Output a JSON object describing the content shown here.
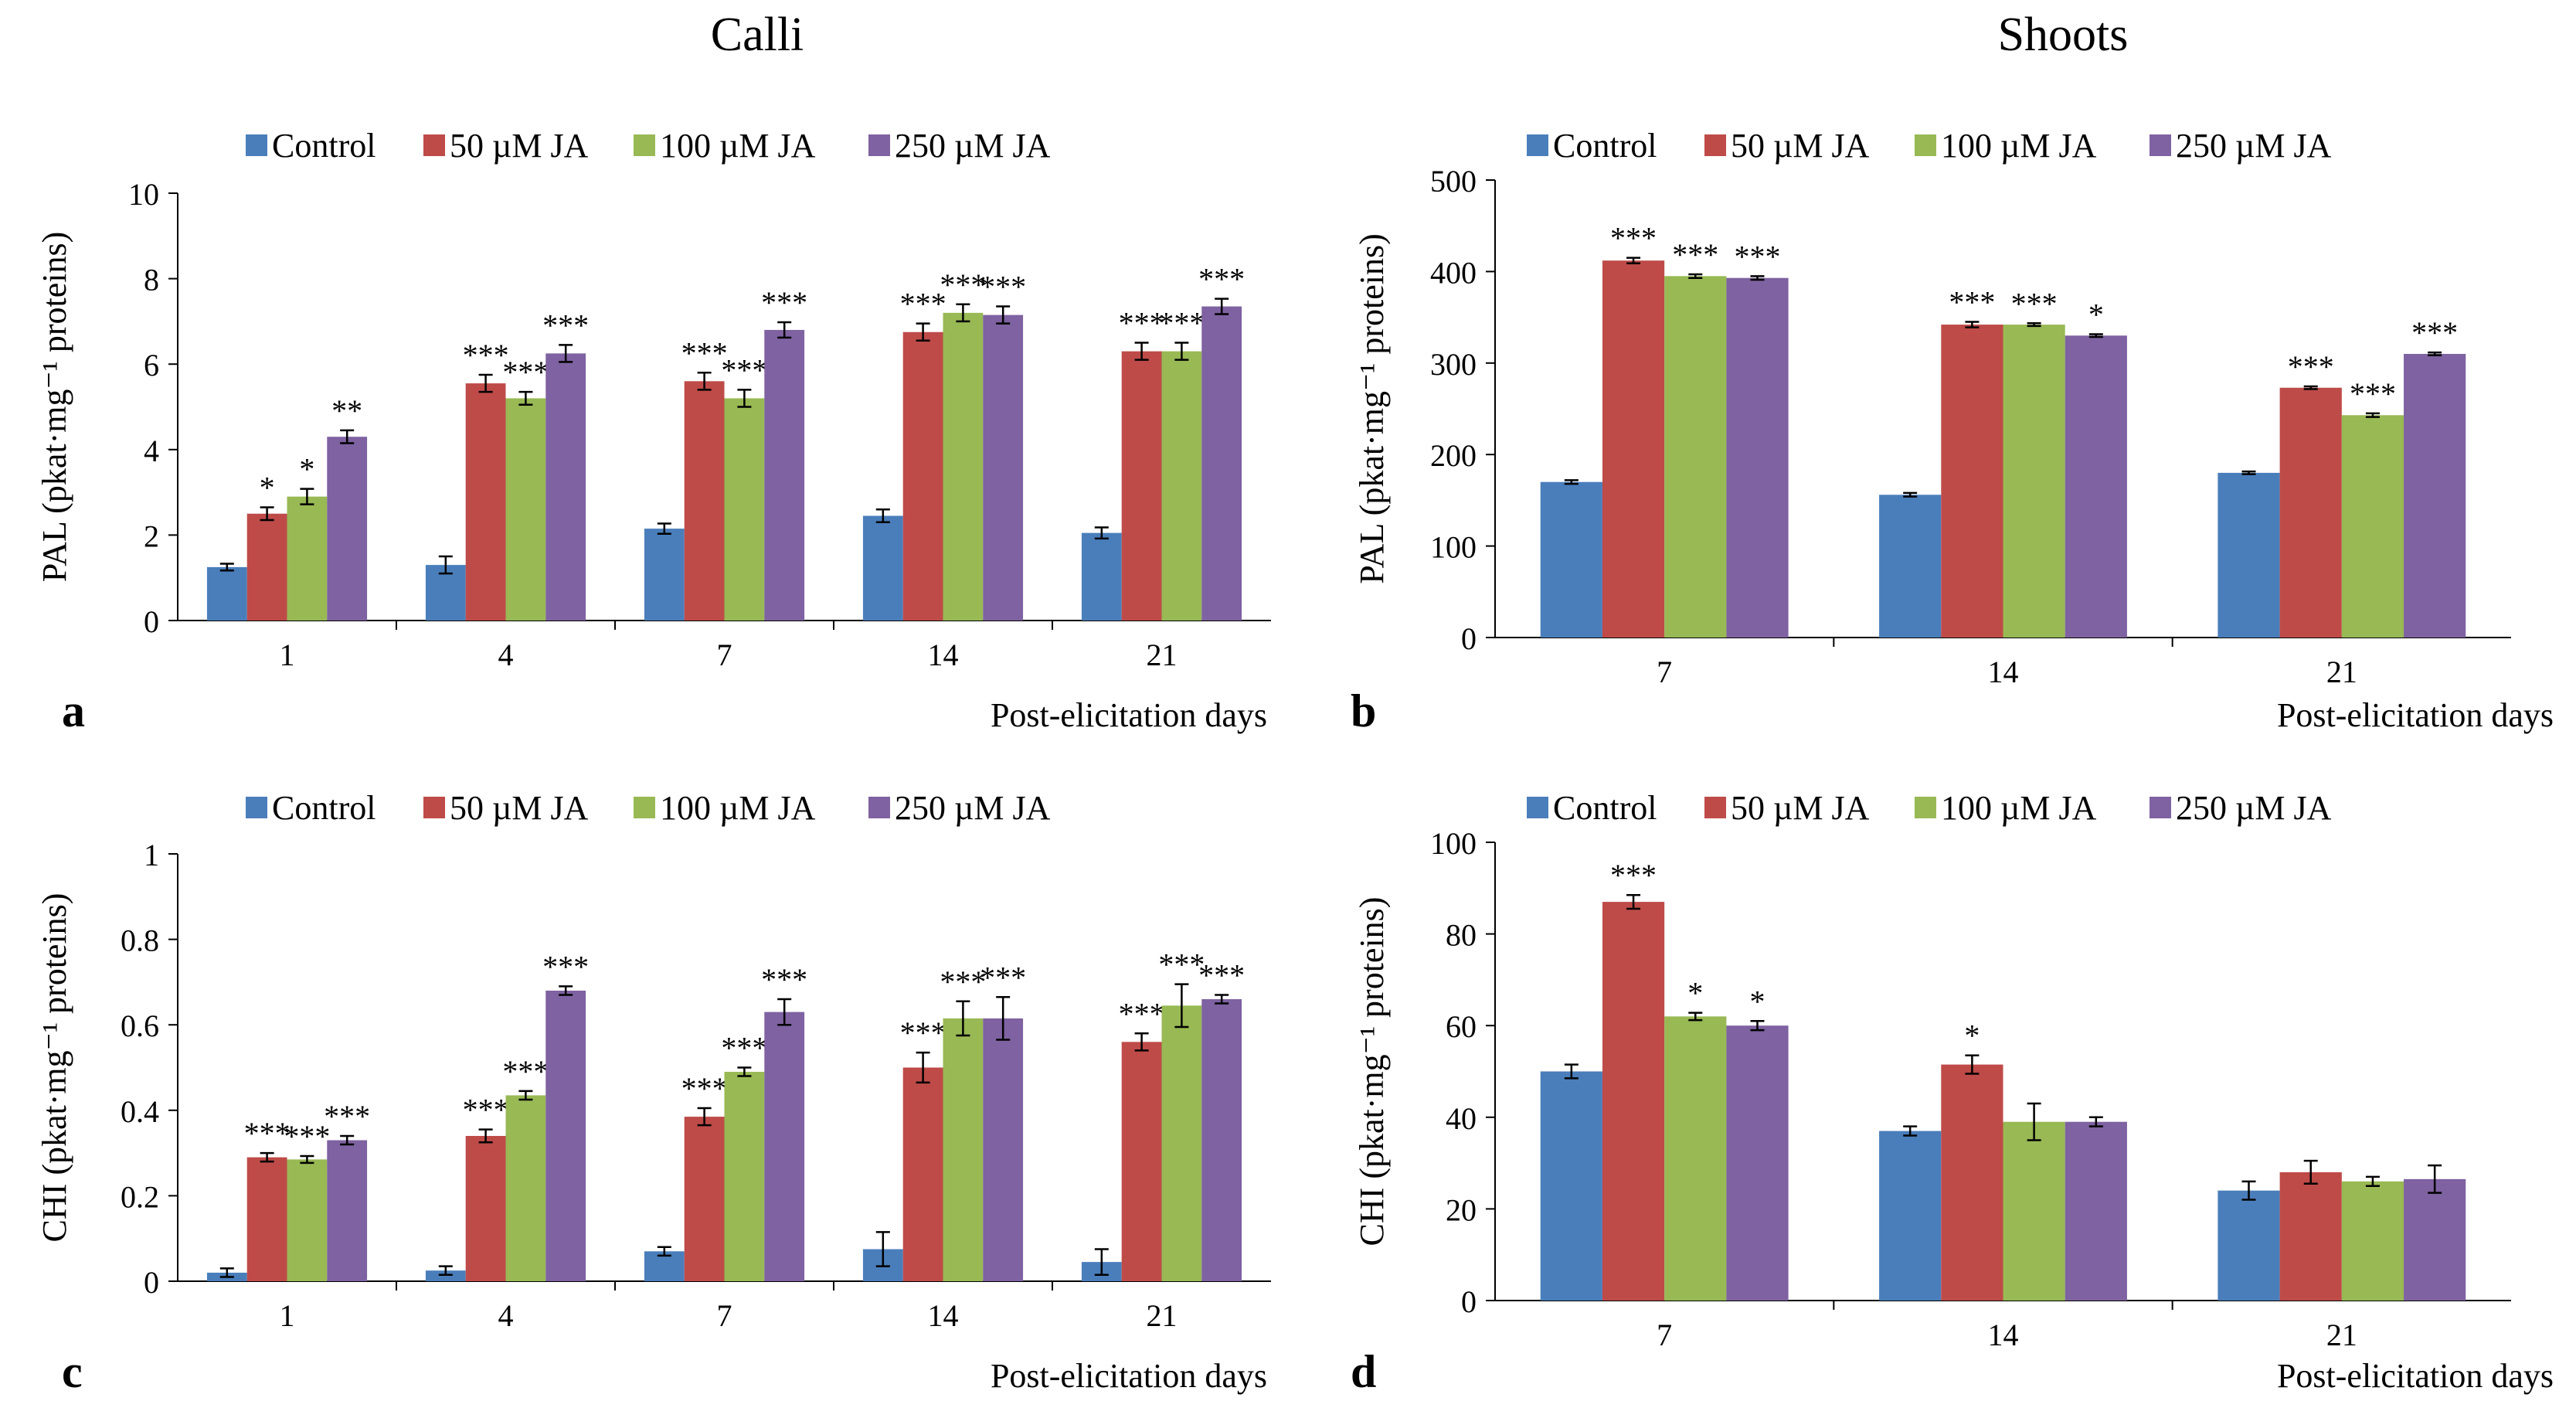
{
  "titles": {
    "left": "Calli",
    "right": "Shoots"
  },
  "colors": {
    "Control": "#4a7ebb",
    "50 µM JA": "#be4b48",
    "100 µM JA": "#98b954",
    "250 µM JA": "#7e62a1"
  },
  "chart_data": [
    {
      "id": "a",
      "panel_label": "a",
      "type": "bar",
      "ylabel": "PAL (pkat·mg⁻¹ proteins)",
      "xlabel": "Post-elicitation days",
      "ylim": [
        0,
        10
      ],
      "yticks": [
        "0",
        "2",
        "4",
        "6",
        "8",
        "10"
      ],
      "categories": [
        "1",
        "4",
        "7",
        "14",
        "21"
      ],
      "series": [
        {
          "name": "Control",
          "values": [
            1.25,
            1.3,
            2.15,
            2.45,
            2.05
          ],
          "errors": [
            0.08,
            0.2,
            0.12,
            0.15,
            0.13
          ],
          "sig": [
            "",
            "",
            "",
            "",
            ""
          ]
        },
        {
          "name": "50 µM JA",
          "values": [
            2.5,
            5.55,
            5.6,
            6.75,
            6.3
          ],
          "errors": [
            0.15,
            0.2,
            0.2,
            0.2,
            0.2
          ],
          "sig": [
            "*",
            "***",
            "***",
            "***",
            "***"
          ]
        },
        {
          "name": "100 µM JA",
          "values": [
            2.9,
            5.2,
            5.2,
            7.2,
            6.3
          ],
          "errors": [
            0.18,
            0.15,
            0.2,
            0.2,
            0.2
          ],
          "sig": [
            "*",
            "***",
            "***",
            "***",
            "***"
          ]
        },
        {
          "name": "250 µM JA",
          "values": [
            4.3,
            6.25,
            6.8,
            7.15,
            7.35
          ],
          "errors": [
            0.15,
            0.2,
            0.18,
            0.2,
            0.18
          ],
          "sig": [
            "**",
            "***",
            "***",
            "***",
            "***"
          ]
        }
      ]
    },
    {
      "id": "b",
      "panel_label": "b",
      "type": "bar",
      "ylabel": "PAL (pkat·mg⁻¹ proteins)",
      "xlabel": "Post-elicitation days",
      "ylim": [
        0,
        500
      ],
      "yticks": [
        "0",
        "100",
        "200",
        "300",
        "400",
        "500"
      ],
      "categories": [
        "7",
        "14",
        "21"
      ],
      "series": [
        {
          "name": "Control",
          "values": [
            170,
            156,
            180
          ],
          "errors": [
            2,
            2,
            1.5
          ],
          "sig": [
            "",
            "",
            ""
          ]
        },
        {
          "name": "50 µM JA",
          "values": [
            412,
            342,
            273
          ],
          "errors": [
            3,
            3,
            1.5
          ],
          "sig": [
            "***",
            "***",
            "***"
          ]
        },
        {
          "name": "100 µM JA",
          "values": [
            395,
            342,
            243
          ],
          "errors": [
            2,
            1.5,
            2
          ],
          "sig": [
            "***",
            "***",
            "***"
          ]
        },
        {
          "name": "250 µM JA",
          "values": [
            393,
            330,
            310
          ],
          "errors": [
            2,
            1.5,
            1.5
          ],
          "sig": [
            "***",
            "*",
            "***"
          ]
        }
      ]
    },
    {
      "id": "c",
      "panel_label": "c",
      "type": "bar",
      "ylabel": "CHI (pkat·mg⁻¹ proteins)",
      "xlabel": "Post-elicitation days",
      "ylim": [
        0,
        1
      ],
      "yticks": [
        "0",
        "0.2",
        "0.4",
        "0.6",
        "0.8",
        "1"
      ],
      "categories": [
        "1",
        "4",
        "7",
        "14",
        "21"
      ],
      "series": [
        {
          "name": "Control",
          "values": [
            0.02,
            0.025,
            0.07,
            0.075,
            0.045
          ],
          "errors": [
            0.01,
            0.01,
            0.01,
            0.04,
            0.03
          ],
          "sig": [
            "",
            "",
            "",
            "",
            ""
          ]
        },
        {
          "name": "50 µM JA",
          "values": [
            0.29,
            0.34,
            0.385,
            0.5,
            0.56
          ],
          "errors": [
            0.01,
            0.015,
            0.02,
            0.035,
            0.02
          ],
          "sig": [
            "***",
            "***",
            "***",
            "***",
            "***"
          ]
        },
        {
          "name": "100 µM JA",
          "values": [
            0.285,
            0.435,
            0.49,
            0.615,
            0.645
          ],
          "errors": [
            0.008,
            0.01,
            0.01,
            0.04,
            0.05
          ],
          "sig": [
            "***",
            "***",
            "***",
            "***",
            "***"
          ]
        },
        {
          "name": "250 µM JA",
          "values": [
            0.33,
            0.68,
            0.63,
            0.615,
            0.66
          ],
          "errors": [
            0.01,
            0.01,
            0.03,
            0.05,
            0.01
          ],
          "sig": [
            "***",
            "***",
            "***",
            "***",
            "***"
          ]
        }
      ]
    },
    {
      "id": "d",
      "panel_label": "d",
      "type": "bar",
      "ylabel": "CHI (pkat·mg⁻¹ proteins)",
      "xlabel": "Post-elicitation days",
      "ylim": [
        0,
        100
      ],
      "yticks": [
        "0",
        "20",
        "40",
        "60",
        "80",
        "100"
      ],
      "categories": [
        "7",
        "14",
        "21"
      ],
      "series": [
        {
          "name": "Control",
          "values": [
            50,
            37,
            24
          ],
          "errors": [
            1.5,
            1,
            2
          ],
          "sig": [
            "",
            "",
            ""
          ]
        },
        {
          "name": "50 µM JA",
          "values": [
            87,
            51.5,
            28
          ],
          "errors": [
            1.5,
            2,
            2.5
          ],
          "sig": [
            "***",
            "*",
            ""
          ]
        },
        {
          "name": "100 µM JA",
          "values": [
            62,
            39,
            26
          ],
          "errors": [
            0.8,
            4,
            1
          ],
          "sig": [
            "*",
            "",
            ""
          ]
        },
        {
          "name": "250 µM JA",
          "values": [
            60,
            39,
            26.5
          ],
          "errors": [
            1,
            1,
            3
          ],
          "sig": [
            "*",
            "",
            ""
          ]
        }
      ]
    }
  ]
}
